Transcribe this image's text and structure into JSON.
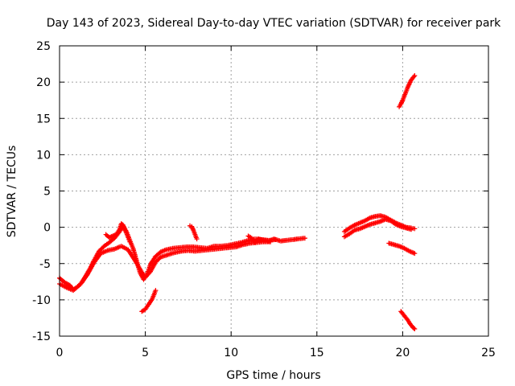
{
  "chart_data": {
    "type": "scatter",
    "title": "Day 143 of 2023, Sidereal Day-to-day VTEC variation (SDTVAR) for receiver park",
    "xlabel": "GPS time / hours",
    "ylabel": "SDTVAR / TECUs",
    "xlim": [
      0,
      25
    ],
    "ylim": [
      -15,
      25
    ],
    "x_ticks": [
      "0",
      "5",
      "10",
      "15",
      "20",
      "25"
    ],
    "y_ticks": [
      "25",
      "20",
      "15",
      "10",
      "5",
      "0",
      "-5",
      "-10",
      "-15"
    ],
    "grid": true,
    "marker": "+",
    "color": "#ff0000",
    "series": [
      {
        "name": "main-track-1",
        "x": [
          0.0,
          0.3,
          0.6,
          0.8,
          1.0,
          1.3,
          1.5,
          1.8,
          2.0,
          2.3,
          2.6,
          2.9,
          3.2,
          3.5,
          3.7,
          3.9,
          4.1,
          4.3,
          4.5,
          4.7,
          4.9,
          5.1,
          5.3,
          5.6,
          5.9,
          6.2,
          6.6,
          7.0,
          7.4,
          7.8,
          8.2,
          8.6,
          9.0,
          9.4,
          9.8,
          10.2,
          10.6,
          11.0,
          11.4,
          11.8,
          12.2,
          12.6
        ],
        "y": [
          -7.0,
          -7.6,
          -8.0,
          -8.6,
          -8.3,
          -7.6,
          -6.8,
          -5.6,
          -4.6,
          -3.3,
          -2.6,
          -2.1,
          -1.5,
          -0.6,
          0.2,
          -0.6,
          -1.8,
          -3.0,
          -4.7,
          -6.3,
          -7.2,
          -6.5,
          -5.1,
          -4.0,
          -3.4,
          -3.1,
          -2.9,
          -2.8,
          -2.7,
          -2.7,
          -2.8,
          -2.9,
          -2.6,
          -2.6,
          -2.5,
          -2.3,
          -2.1,
          -1.8,
          -1.6,
          -1.7,
          -1.8,
          -1.7
        ]
      },
      {
        "name": "main-track-2",
        "x": [
          0.0,
          0.4,
          0.8,
          1.2,
          1.6,
          2.0,
          2.4,
          2.8,
          3.2,
          3.6,
          4.0,
          4.4,
          4.8,
          5.0,
          5.3,
          5.6,
          5.9,
          6.3,
          6.7,
          7.1,
          7.5,
          7.9,
          8.3,
          8.7,
          9.1,
          9.5,
          9.9,
          10.3,
          10.7,
          11.1,
          11.5,
          11.9,
          12.3
        ],
        "y": [
          -7.8,
          -8.3,
          -8.7,
          -7.9,
          -6.6,
          -4.9,
          -3.6,
          -3.2,
          -3.0,
          -2.6,
          -3.1,
          -4.6,
          -6.2,
          -6.9,
          -6.1,
          -4.8,
          -4.1,
          -3.8,
          -3.5,
          -3.3,
          -3.2,
          -3.3,
          -3.2,
          -3.1,
          -3.0,
          -2.9,
          -2.8,
          -2.7,
          -2.4,
          -2.2,
          -2.1,
          -2.0,
          -2.0
        ]
      },
      {
        "name": "upper-bump",
        "x": [
          2.7,
          2.9,
          3.1,
          3.3,
          3.5,
          3.6,
          3.7,
          3.9,
          4.1
        ],
        "y": [
          -1.0,
          -1.4,
          -1.2,
          -1.0,
          -0.3,
          0.5,
          0.3,
          -0.8,
          -2.0
        ]
      },
      {
        "name": "spur-7-8",
        "x": [
          7.6,
          7.7,
          7.8,
          7.9,
          8.0
        ],
        "y": [
          0.2,
          0.1,
          -0.4,
          -1.0,
          -1.6
        ]
      },
      {
        "name": "segment-11-14",
        "x": [
          11.0,
          11.2,
          11.4,
          11.6,
          11.9,
          12.2,
          12.5,
          12.9,
          13.2,
          13.6,
          13.9,
          14.3
        ],
        "y": [
          -1.2,
          -1.5,
          -2.1,
          -1.6,
          -1.8,
          -1.9,
          -1.6,
          -1.9,
          -1.8,
          -1.7,
          -1.6,
          -1.5
        ]
      },
      {
        "name": "lower-segment-5",
        "x": [
          4.8,
          5.0,
          5.2,
          5.4,
          5.6
        ],
        "y": [
          -11.6,
          -11.3,
          -10.6,
          -9.9,
          -8.7
        ]
      },
      {
        "name": "segment-17-21-a",
        "x": [
          16.6,
          16.9,
          17.2,
          17.5,
          17.8,
          18.1,
          18.4,
          18.7,
          19.0,
          19.3,
          19.6,
          19.9,
          20.2,
          20.5,
          20.7
        ],
        "y": [
          -0.6,
          -0.1,
          0.3,
          0.6,
          0.9,
          1.3,
          1.5,
          1.6,
          1.4,
          1.0,
          0.6,
          0.3,
          0.0,
          -0.1,
          -0.2
        ]
      },
      {
        "name": "segment-17-21-b",
        "x": [
          16.6,
          16.9,
          17.2,
          17.5,
          17.8,
          18.1,
          18.4,
          18.7,
          19.0,
          19.3,
          19.6,
          19.9,
          20.2,
          20.5
        ],
        "y": [
          -1.3,
          -0.9,
          -0.4,
          -0.2,
          0.1,
          0.4,
          0.6,
          0.8,
          1.1,
          0.9,
          0.4,
          0.1,
          -0.1,
          -0.3
        ]
      },
      {
        "name": "segment-19-21-mid",
        "x": [
          19.2,
          19.5,
          19.8,
          20.1,
          20.4,
          20.7
        ],
        "y": [
          -2.2,
          -2.4,
          -2.6,
          -2.9,
          -3.3,
          -3.6
        ]
      },
      {
        "name": "upper-segment-20",
        "x": [
          19.8,
          19.9,
          20.0,
          20.1,
          20.2,
          20.3,
          20.4,
          20.5,
          20.6,
          20.7
        ],
        "y": [
          16.6,
          17.0,
          17.5,
          18.1,
          18.7,
          19.3,
          19.8,
          20.3,
          20.6,
          20.9
        ]
      },
      {
        "name": "lower-segment-20",
        "x": [
          19.9,
          20.0,
          20.1,
          20.2,
          20.3,
          20.4,
          20.5,
          20.6,
          20.7
        ],
        "y": [
          -11.6,
          -11.9,
          -12.2,
          -12.5,
          -12.8,
          -13.2,
          -13.5,
          -13.8,
          -14.0
        ]
      }
    ]
  }
}
